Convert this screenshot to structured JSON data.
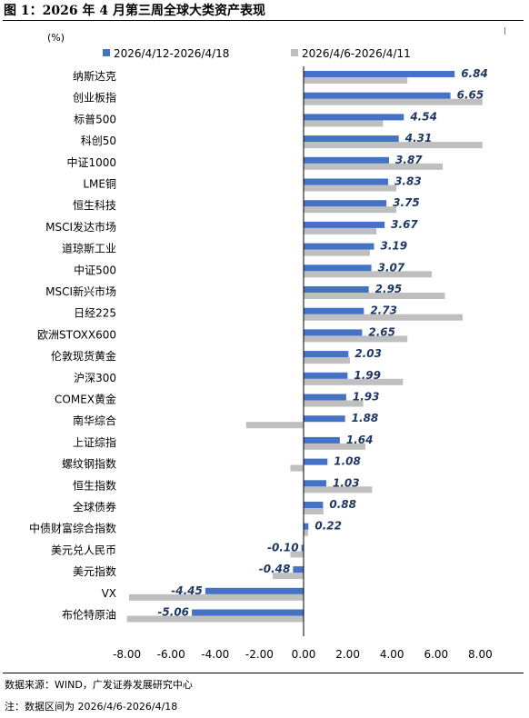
{
  "figure": {
    "title": "图 1：2026 年 4 月第三周全球大类资产表现",
    "source": "数据来源：WIND，广发证券发展研究中心",
    "note": "注：数据区间为 2026/4/6-2026/4/18"
  },
  "chart_data": {
    "type": "bar",
    "orientation": "horizontal",
    "unit_label": "(%)",
    "categories": [
      "纳斯达克",
      "创业板指",
      "标普500",
      "科创50",
      "中证1000",
      "LME铜",
      "恒生科技",
      "MSCI发达市场",
      "道琼斯工业",
      "中证500",
      "MSCI新兴市场",
      "日经225",
      "欧洲STOXX600",
      "伦敦现货黄金",
      "沪深300",
      "COMEX黄金",
      "南华综合",
      "上证综指",
      "螺纹钢指数",
      "恒生指数",
      "全球债券",
      "中债财富综合指数",
      "美元兑人民币",
      "美元指数",
      "VX",
      "布伦特原油"
    ],
    "series": [
      {
        "name": "2026/4/12-2026/4/18",
        "color": "#4472C4",
        "values": [
          6.84,
          6.65,
          4.54,
          4.31,
          3.87,
          3.83,
          3.75,
          3.67,
          3.19,
          3.07,
          2.95,
          2.73,
          2.65,
          2.03,
          1.99,
          1.93,
          1.88,
          1.64,
          1.08,
          1.03,
          0.88,
          0.22,
          -0.1,
          -0.48,
          -4.45,
          -5.06
        ]
      },
      {
        "name": "2026/4/6-2026/4/11",
        "color": "#BFBFBF",
        "values": [
          4.7,
          8.1,
          3.6,
          8.1,
          6.3,
          4.2,
          4.2,
          3.3,
          3.0,
          5.8,
          6.4,
          7.2,
          4.7,
          2.1,
          4.5,
          2.7,
          -2.6,
          2.8,
          -0.6,
          3.1,
          0.9,
          0.2,
          -0.6,
          -1.4,
          -7.9,
          -8.0
        ]
      }
    ],
    "xlim": [
      -8,
      9
    ],
    "xticks": [
      "-8.00",
      "-6.00",
      "-4.00",
      "-2.00",
      "0.00",
      "2.00",
      "4.00",
      "6.00",
      "8.00"
    ],
    "xtick_values": [
      -8,
      -6,
      -4,
      -2,
      0,
      2,
      4,
      6,
      8
    ],
    "data_labels": [
      "6.84",
      "6.65",
      "4.54",
      "4.31",
      "3.87",
      "3.83",
      "3.75",
      "3.67",
      "3.19",
      "3.07",
      "2.95",
      "2.73",
      "2.65",
      "2.03",
      "1.99",
      "1.93",
      "1.88",
      "1.64",
      "1.08",
      "1.03",
      "0.88",
      "0.22",
      "-0.10",
      "-0.48",
      "-4.45",
      "-5.06"
    ],
    "legend_position": "top",
    "grid": false
  }
}
